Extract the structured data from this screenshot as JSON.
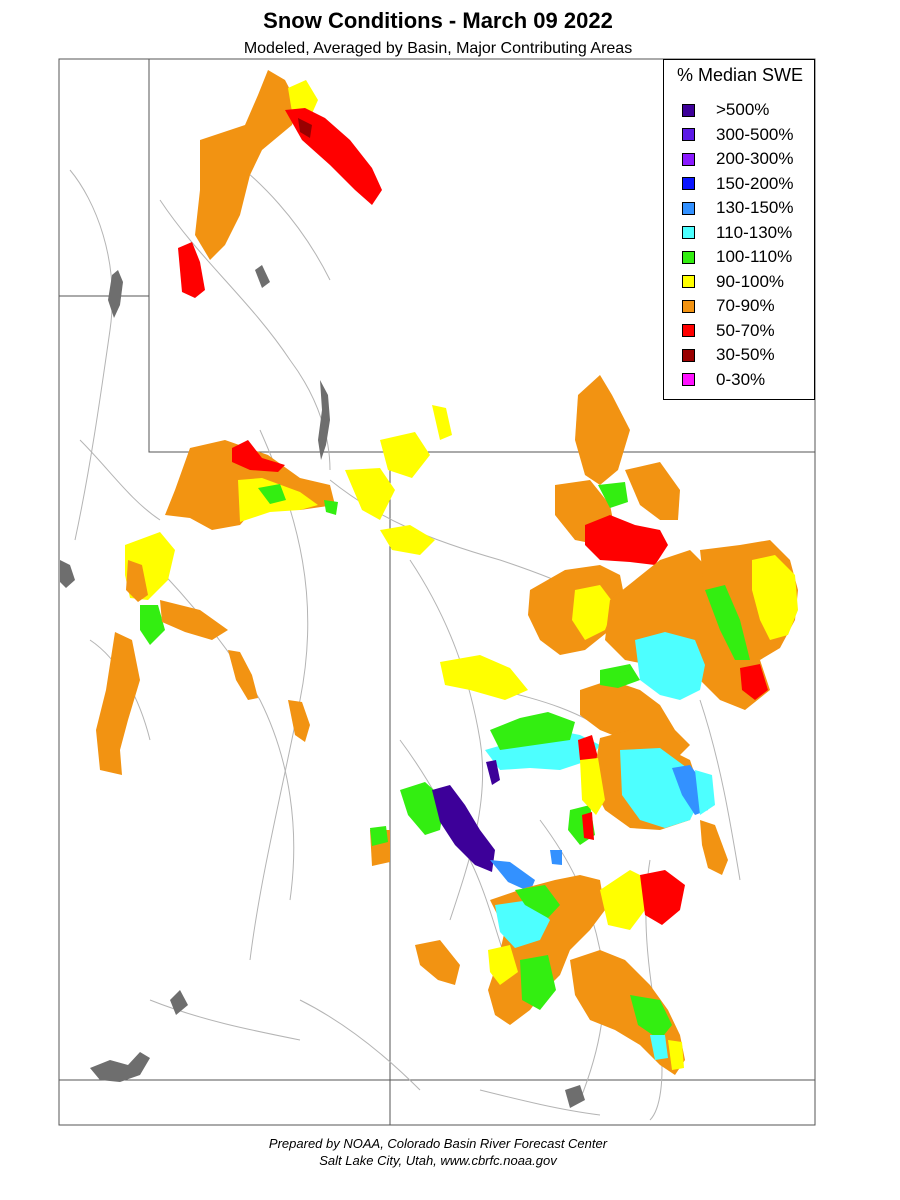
{
  "header": {
    "title": "Snow Conditions - March 09 2022",
    "subtitle": "Modeled, Averaged by Basin, Major Contributing Areas"
  },
  "legend": {
    "title": "% Median SWE",
    "items": [
      {
        "label": ">500%",
        "color": "#3d0099"
      },
      {
        "label": "300-500%",
        "color": "#5c1ae6"
      },
      {
        "label": "200-300%",
        "color": "#8a1aff"
      },
      {
        "label": "150-200%",
        "color": "#0a14ff"
      },
      {
        "label": "130-150%",
        "color": "#3391ff"
      },
      {
        "label": "110-130%",
        "color": "#4dffff"
      },
      {
        "label": "100-110%",
        "color": "#33ee11"
      },
      {
        "label": "90-100%",
        "color": "#ffff00"
      },
      {
        "label": "70-90%",
        "color": "#f29312"
      },
      {
        "label": "50-70%",
        "color": "#ff0000"
      },
      {
        "label": "30-50%",
        "color": "#990000"
      },
      {
        "label": "0-30%",
        "color": "#ff11ff"
      }
    ]
  },
  "colors": {
    "boundary": "#555555",
    "river": "#b4b4b4",
    "water": "#6e6e6e"
  },
  "footer": {
    "line1": "Prepared by NOAA, Colorado Basin River Forecast Center",
    "line2": "Salt Lake City, Utah, www.cbrfc.noaa.gov"
  }
}
